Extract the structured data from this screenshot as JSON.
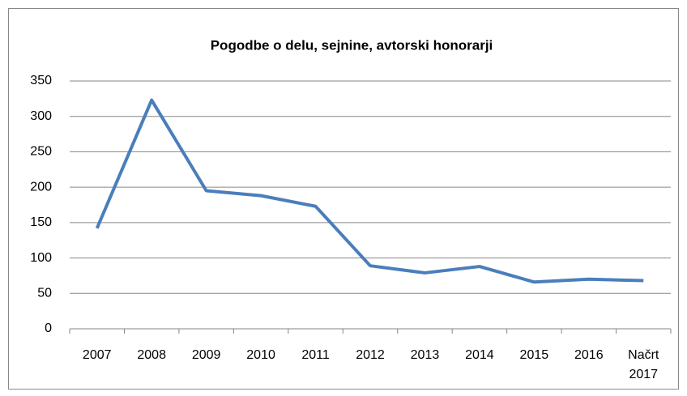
{
  "chart_data": {
    "type": "line",
    "title": "Pogodbe o delu, sejnine, avtorski honorarji",
    "categories": [
      "2007",
      "2008",
      "2009",
      "2010",
      "2011",
      "2012",
      "2013",
      "2014",
      "2015",
      "2016",
      "Načrt 2017"
    ],
    "series": [
      {
        "color": "#4a7ebb",
        "values": [
          142,
          323,
          195,
          188,
          173,
          89,
          79,
          88,
          66,
          70,
          68
        ]
      }
    ],
    "ylim": [
      0,
      350
    ],
    "yticks": [
      0,
      50,
      100,
      150,
      200,
      250,
      300,
      350
    ],
    "grid": true
  }
}
